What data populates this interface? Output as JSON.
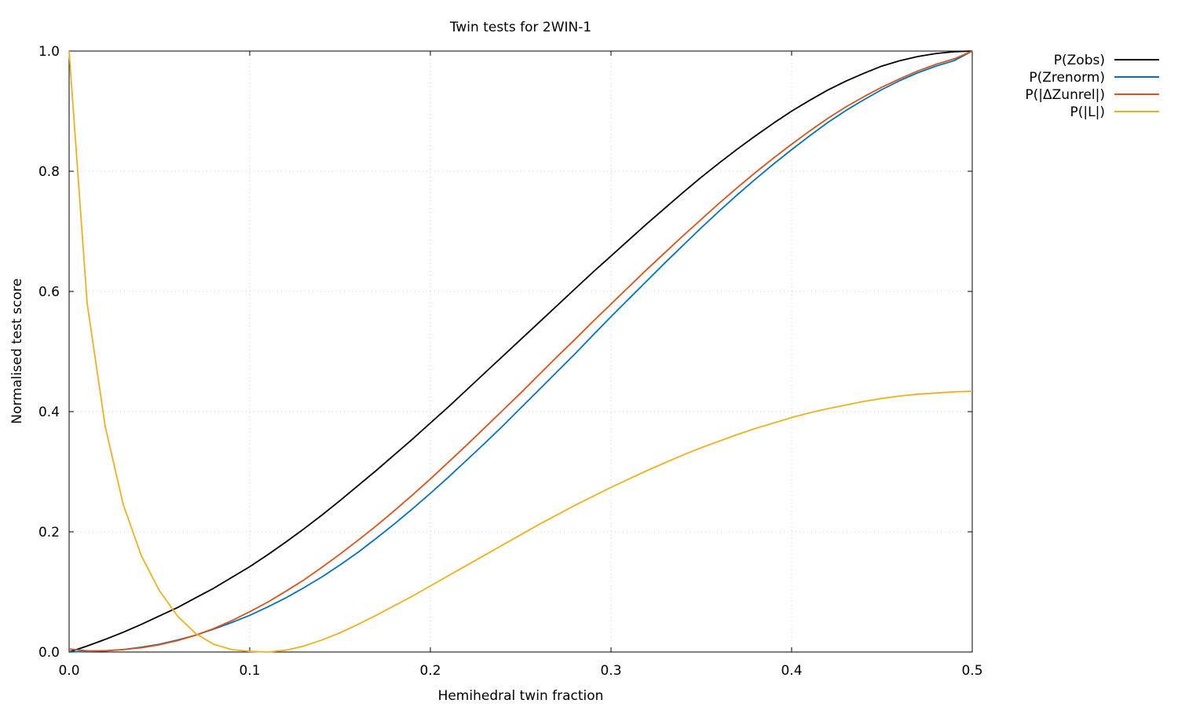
{
  "chart_data": {
    "type": "line",
    "title": "Twin tests for 2WIN-1",
    "xlabel": "Hemihedral twin fraction",
    "ylabel": "Normalised test score",
    "xlim": [
      0,
      0.5
    ],
    "ylim": [
      0,
      1
    ],
    "xticks": [
      "0.0",
      "0.1",
      "0.2",
      "0.3",
      "0.4",
      "0.5"
    ],
    "yticks": [
      "0.0",
      "0.2",
      "0.4",
      "0.6",
      "0.8",
      "1.0"
    ],
    "grid": true,
    "legend_position": "outside-top-right",
    "x": [
      0.0,
      0.01,
      0.02,
      0.03,
      0.04,
      0.05,
      0.06,
      0.07,
      0.08,
      0.09,
      0.1,
      0.11,
      0.12,
      0.13,
      0.14,
      0.15,
      0.16,
      0.17,
      0.18,
      0.19,
      0.2,
      0.21,
      0.22,
      0.23,
      0.24,
      0.25,
      0.26,
      0.27,
      0.28,
      0.29,
      0.3,
      0.31,
      0.32,
      0.33,
      0.34,
      0.35,
      0.36,
      0.37,
      0.38,
      0.39,
      0.4,
      0.41,
      0.42,
      0.43,
      0.44,
      0.45,
      0.46,
      0.47,
      0.48,
      0.49,
      0.5
    ],
    "series": [
      {
        "name": "P(Zobs)",
        "color": "#000000",
        "values": [
          0.0,
          0.01,
          0.021,
          0.033,
          0.046,
          0.06,
          0.074,
          0.09,
          0.106,
          0.124,
          0.142,
          0.162,
          0.183,
          0.205,
          0.228,
          0.252,
          0.277,
          0.302,
          0.328,
          0.354,
          0.381,
          0.408,
          0.436,
          0.464,
          0.492,
          0.52,
          0.548,
          0.576,
          0.604,
          0.632,
          0.659,
          0.686,
          0.713,
          0.739,
          0.765,
          0.79,
          0.814,
          0.837,
          0.859,
          0.88,
          0.9,
          0.918,
          0.935,
          0.95,
          0.963,
          0.975,
          0.984,
          0.991,
          0.996,
          0.999,
          1.0
        ]
      },
      {
        "name": "P(Zrenorm)",
        "color": "#0072bd",
        "values": [
          0.0,
          0.001,
          0.002,
          0.004,
          0.008,
          0.013,
          0.02,
          0.028,
          0.038,
          0.049,
          0.061,
          0.075,
          0.09,
          0.107,
          0.125,
          0.145,
          0.166,
          0.189,
          0.213,
          0.238,
          0.264,
          0.291,
          0.319,
          0.347,
          0.376,
          0.406,
          0.436,
          0.466,
          0.496,
          0.527,
          0.558,
          0.588,
          0.618,
          0.648,
          0.677,
          0.706,
          0.734,
          0.761,
          0.787,
          0.812,
          0.836,
          0.859,
          0.881,
          0.901,
          0.919,
          0.936,
          0.951,
          0.964,
          0.975,
          0.984,
          1.0
        ]
      },
      {
        "name": "P(|ΔZunrel|)",
        "color": "#d95319",
        "values": [
          0.005,
          0.002,
          0.002,
          0.004,
          0.007,
          0.012,
          0.019,
          0.028,
          0.039,
          0.052,
          0.067,
          0.083,
          0.101,
          0.12,
          0.141,
          0.163,
          0.186,
          0.21,
          0.235,
          0.261,
          0.288,
          0.316,
          0.344,
          0.373,
          0.402,
          0.431,
          0.461,
          0.491,
          0.52,
          0.55,
          0.579,
          0.608,
          0.637,
          0.665,
          0.693,
          0.72,
          0.747,
          0.773,
          0.798,
          0.822,
          0.845,
          0.867,
          0.888,
          0.907,
          0.924,
          0.94,
          0.954,
          0.967,
          0.978,
          0.987,
          1.0
        ]
      },
      {
        "name": "P(|L|)",
        "color": "#edb120",
        "values": [
          1.0,
          0.58,
          0.375,
          0.245,
          0.16,
          0.102,
          0.06,
          0.031,
          0.013,
          0.004,
          0.001,
          0.0,
          0.003,
          0.01,
          0.02,
          0.032,
          0.046,
          0.061,
          0.077,
          0.093,
          0.11,
          0.127,
          0.144,
          0.161,
          0.178,
          0.195,
          0.212,
          0.228,
          0.244,
          0.259,
          0.274,
          0.288,
          0.302,
          0.315,
          0.328,
          0.34,
          0.351,
          0.362,
          0.372,
          0.381,
          0.39,
          0.398,
          0.405,
          0.411,
          0.417,
          0.422,
          0.426,
          0.429,
          0.431,
          0.433,
          0.434
        ]
      }
    ]
  }
}
